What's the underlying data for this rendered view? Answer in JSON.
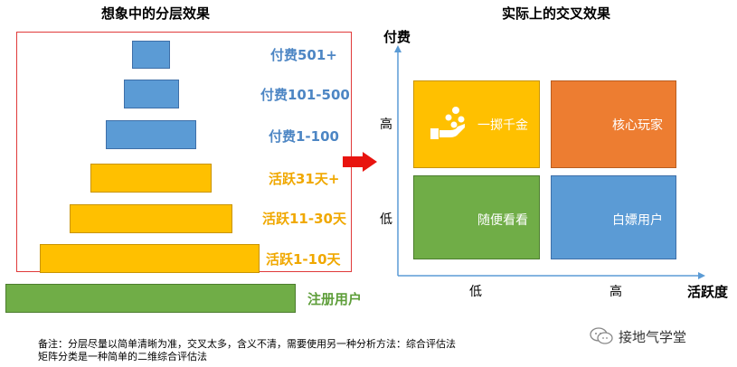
{
  "left": {
    "title": "想象中的分层效果",
    "layers": [
      {
        "label": "付费501+"
      },
      {
        "label": "付费101-500"
      },
      {
        "label": "付费1-100"
      },
      {
        "label": "活跃31天+"
      },
      {
        "label": "活跃11-30天"
      },
      {
        "label": "活跃1-10天"
      },
      {
        "label": "注册用户"
      }
    ]
  },
  "right": {
    "title": "实际上的交叉效果",
    "y_axis_label": "付费",
    "x_axis_label": "活跃度",
    "y_ticks": {
      "high": "高",
      "low": "低"
    },
    "x_ticks": {
      "low": "低",
      "high": "高"
    },
    "quadrants": {
      "top_left": "一掷千金",
      "top_right": "核心玩家",
      "bottom_left": "随便看看",
      "bottom_right": "白嫖用户"
    }
  },
  "notes": {
    "line1": "备注：分层尽量以简单清晰为准，交叉太多，含义不清，需要使用另一种分析方法：综合评估法",
    "line2": "矩阵分类是一种简单的二维综合评估法"
  },
  "brand": "接地气学堂",
  "colors": {
    "blue": "#5b9bd5",
    "yellow": "#ffc000",
    "green": "#70ad47",
    "orange": "#ed7d31",
    "frame_red": "#e03a3a",
    "arrow_red": "#e8140f"
  }
}
